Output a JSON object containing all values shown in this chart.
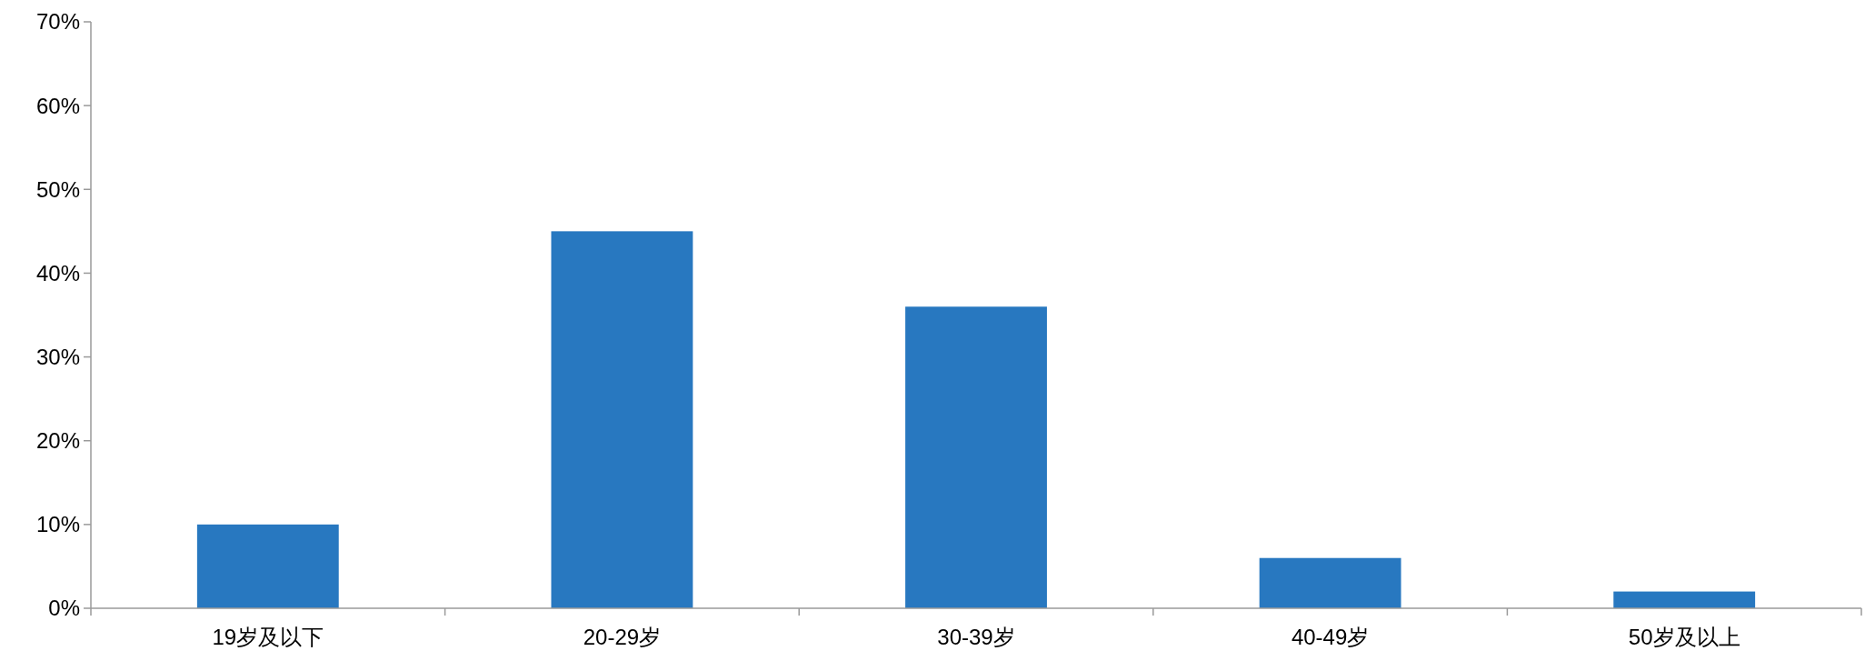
{
  "chart_data": {
    "type": "bar",
    "categories": [
      "19岁及以下",
      "20-29岁",
      "30-39岁",
      "40-49岁",
      "50岁及以上"
    ],
    "values": [
      10,
      45,
      36,
      6,
      2
    ],
    "color": "#2878c0",
    "ylim": [
      0,
      70
    ],
    "yticks": [
      {
        "value": 0,
        "label": "0%"
      },
      {
        "value": 10,
        "label": "10%"
      },
      {
        "value": 20,
        "label": "20%"
      },
      {
        "value": 30,
        "label": "30%"
      },
      {
        "value": 40,
        "label": "40%"
      },
      {
        "value": 50,
        "label": "50%"
      },
      {
        "value": 60,
        "label": "60%"
      },
      {
        "value": 70,
        "label": "70%"
      }
    ],
    "grid": false
  }
}
